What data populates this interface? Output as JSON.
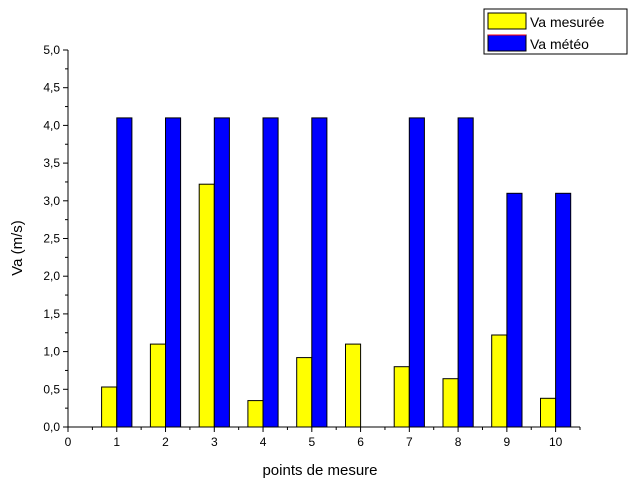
{
  "chart_data": {
    "type": "bar",
    "title": "",
    "xlabel": "points de mesure",
    "ylabel": "Va (m/s)",
    "categories": [
      "1",
      "2",
      "3",
      "4",
      "5",
      "6",
      "7",
      "8",
      "9",
      "10"
    ],
    "x_ticks": [
      "0",
      "1",
      "2",
      "3",
      "4",
      "5",
      "6",
      "7",
      "8",
      "9",
      "10"
    ],
    "xlim": [
      0,
      10.5
    ],
    "ylim": [
      0,
      5
    ],
    "y_ticks": [
      "0,0",
      "0,5",
      "1,0",
      "1,5",
      "2,0",
      "2,5",
      "3,0",
      "3,5",
      "4,0",
      "4,5",
      "5,0"
    ],
    "grid": false,
    "legend": "top-right",
    "series": [
      {
        "name": "Va mesurée",
        "color": "#ffff00",
        "values": [
          0.53,
          1.1,
          3.22,
          0.35,
          0.92,
          1.1,
          0.8,
          0.64,
          1.22,
          0.38
        ]
      },
      {
        "name": "Va météo",
        "color": "#0000ff",
        "values": [
          4.1,
          4.1,
          4.1,
          4.1,
          4.1,
          0,
          4.1,
          4.1,
          3.1,
          3.1
        ]
      }
    ]
  }
}
